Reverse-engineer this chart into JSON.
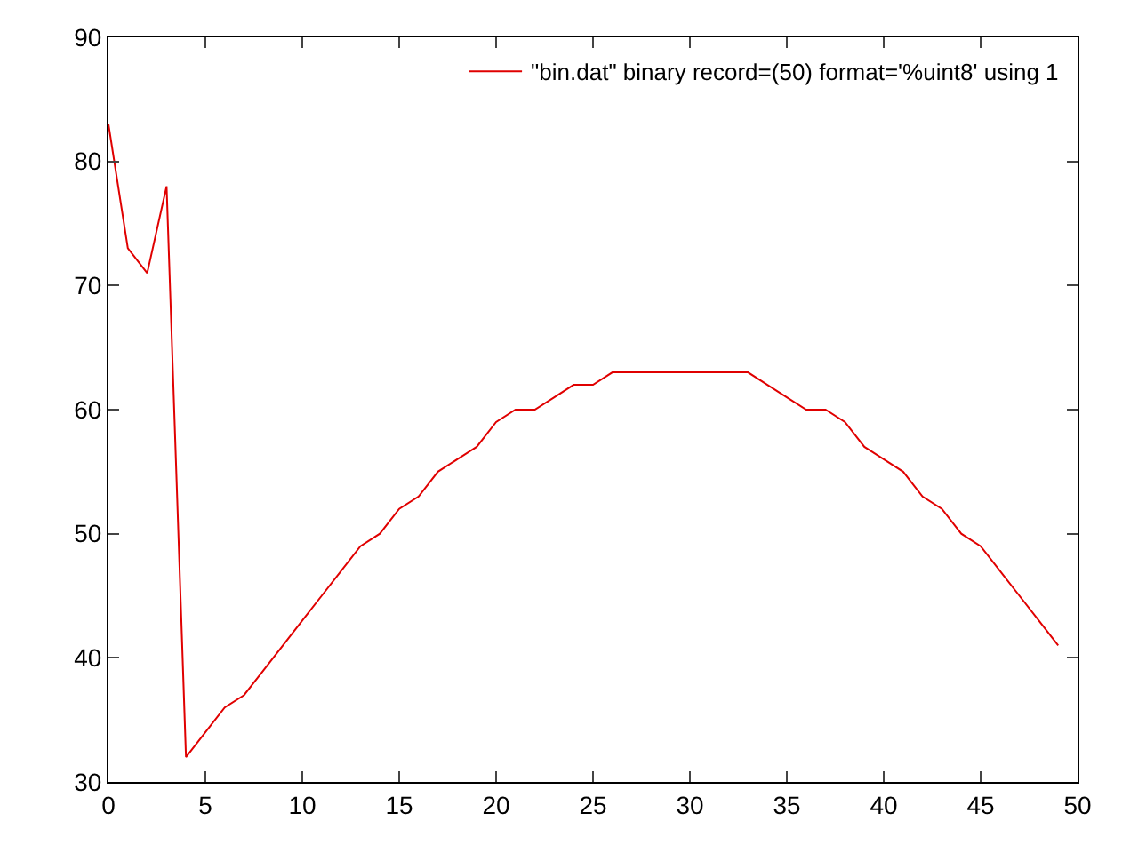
{
  "chart_data": {
    "type": "line",
    "x": [
      0,
      1,
      2,
      3,
      4,
      5,
      6,
      7,
      8,
      9,
      10,
      11,
      12,
      13,
      14,
      15,
      16,
      17,
      18,
      19,
      20,
      21,
      22,
      23,
      24,
      25,
      26,
      27,
      28,
      29,
      30,
      31,
      32,
      33,
      34,
      35,
      36,
      37,
      38,
      39,
      40,
      41,
      42,
      43,
      44,
      45,
      46,
      47,
      48,
      49
    ],
    "series": [
      {
        "name": "\"bin.dat\" binary record=(50) format='%uint8' using 1",
        "color": "#e00000",
        "values": [
          83,
          73,
          71,
          78,
          32,
          34,
          36,
          37,
          39,
          41,
          43,
          45,
          47,
          49,
          50,
          52,
          53,
          55,
          56,
          57,
          59,
          60,
          60,
          61,
          62,
          62,
          63,
          63,
          63,
          63,
          63,
          63,
          63,
          63,
          62,
          61,
          60,
          60,
          59,
          57,
          56,
          55,
          53,
          52,
          50,
          49,
          47,
          45,
          43,
          41
        ]
      }
    ],
    "xlim": [
      0,
      50
    ],
    "xticks": [
      0,
      5,
      10,
      15,
      20,
      25,
      30,
      35,
      40,
      45,
      50
    ],
    "ylim": [
      30,
      90
    ],
    "yticks": [
      30,
      40,
      50,
      60,
      70,
      80,
      90
    ],
    "grid": false,
    "legend": "top right",
    "marker": "none",
    "line_style": "solid"
  }
}
